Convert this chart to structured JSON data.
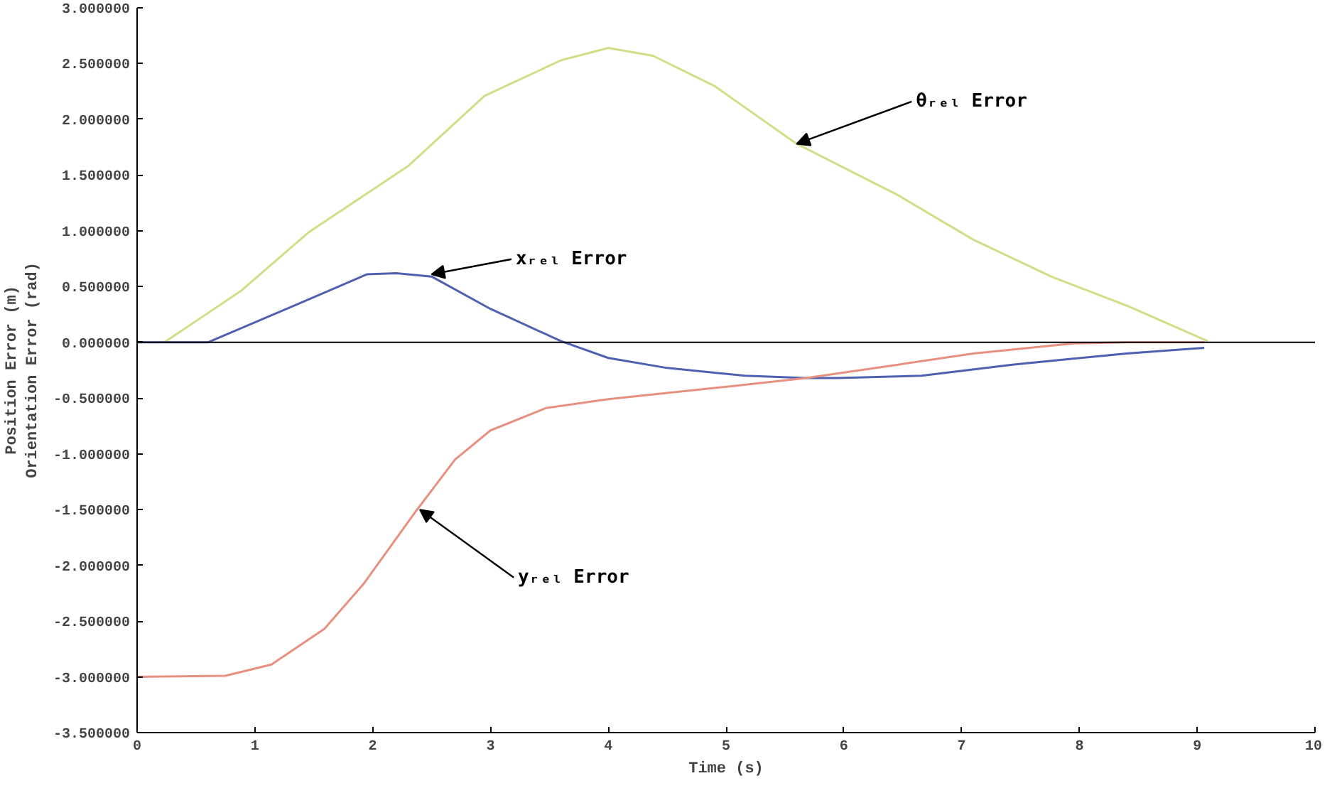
{
  "chart_data": {
    "type": "line",
    "xlabel": "Time (s)",
    "ylabel": "Position Error (m)\nOrientation Error (rad)",
    "xlim": [
      0,
      10
    ],
    "xticks": [
      0,
      1,
      2,
      3,
      4,
      5,
      6,
      7,
      8,
      9,
      10
    ],
    "ylim": [
      -3.5,
      3.0
    ],
    "yticks": [
      {
        "value": -3.5,
        "label": "-3.500000"
      },
      {
        "value": -3.0,
        "label": "-3.000000"
      },
      {
        "value": -2.5,
        "label": "-2.500000"
      },
      {
        "value": -2.0,
        "label": "-2.000000"
      },
      {
        "value": -1.5,
        "label": "-1.500000"
      },
      {
        "value": -1.0,
        "label": "-1.000000"
      },
      {
        "value": -0.5,
        "label": "-0.500000"
      },
      {
        "value": 0,
        "label": "0.000000"
      },
      {
        "value": 0.5,
        "label": "0.500000"
      },
      {
        "value": 1.0,
        "label": "1.000000"
      },
      {
        "value": 1.5,
        "label": "1.500000"
      },
      {
        "value": 2.0,
        "label": "2.000000"
      },
      {
        "value": 2.5,
        "label": "2.500000"
      },
      {
        "value": 3.0,
        "label": "3.000000"
      }
    ],
    "grid": false,
    "marker": "none",
    "line_style": "solid",
    "ref_lines": [
      {
        "axis": "y",
        "value": 0,
        "color": "#000000"
      }
    ],
    "series": [
      {
        "color": "#d4dc88",
        "x": [
          0.23,
          0.88,
          1.46,
          2.3,
          2.95,
          3.6,
          4.0,
          4.38,
          4.9,
          5.6,
          6.46,
          7.1,
          7.76,
          8.4,
          9.09
        ],
        "values": [
          0,
          0.46,
          0.99,
          1.58,
          2.21,
          2.53,
          2.64,
          2.57,
          2.3,
          1.78,
          1.32,
          0.92,
          0.59,
          0.33,
          0.01
        ]
      },
      {
        "color": "#5060b0",
        "x": [
          0,
          0.6,
          1.4,
          1.95,
          2.2,
          2.5,
          3.0,
          3.6,
          4.0,
          4.5,
          5.16,
          5.68,
          5.94,
          6.66,
          7.43,
          8.4,
          9.06
        ],
        "values": [
          0,
          0,
          0.36,
          0.61,
          0.62,
          0.59,
          0.3,
          0.01,
          -0.14,
          -0.23,
          -0.3,
          -0.32,
          -0.32,
          -0.3,
          -0.2,
          -0.1,
          -0.05
        ]
      },
      {
        "color": "#e89080",
        "x": [
          0,
          0.75,
          1.14,
          1.59,
          1.92,
          2.37,
          2.7,
          3.0,
          3.47,
          4.0,
          4.9,
          5.68,
          6.46,
          7.1,
          7.95,
          8.4,
          9.06
        ],
        "values": [
          -3.0,
          -2.99,
          -2.89,
          -2.57,
          -2.17,
          -1.51,
          -1.05,
          -0.79,
          -0.59,
          -0.51,
          -0.41,
          -0.32,
          -0.2,
          -0.1,
          -0.01,
          0,
          0
        ]
      }
    ],
    "annotations": [
      {
        "text": "θᵣₑₗ Error",
        "x": 5.6,
        "y": 1.78
      },
      {
        "text": "xᵣₑₗ Error",
        "x": 2.5,
        "y": 0.61
      },
      {
        "text": "yᵣₑₗ Error",
        "x": 2.4,
        "y": -1.5
      }
    ]
  }
}
